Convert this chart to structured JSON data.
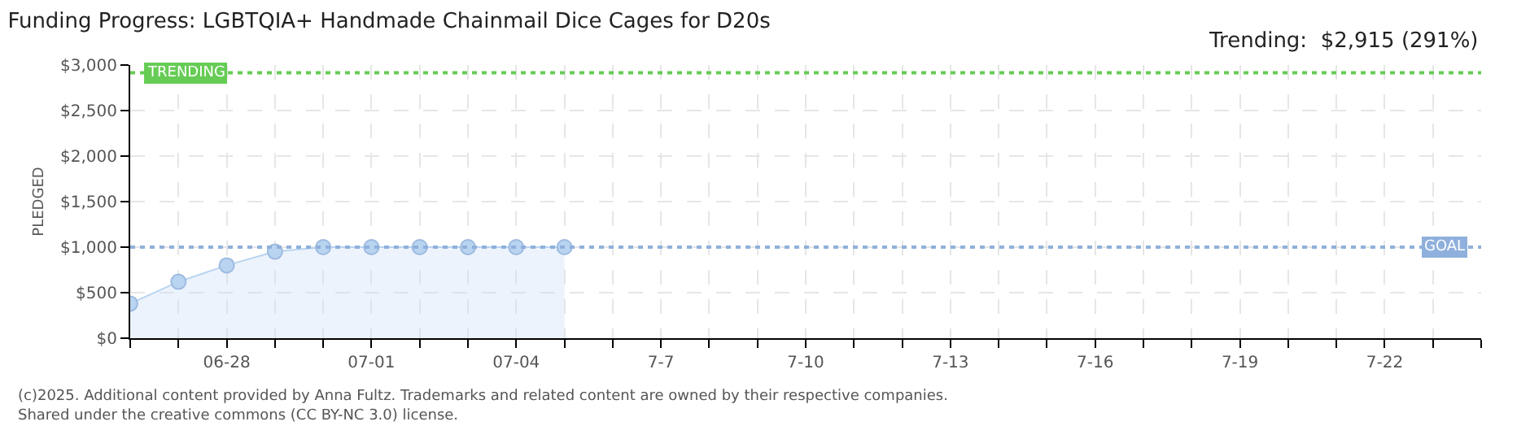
{
  "chart_data": {
    "type": "area",
    "title": "Funding Progress: LGBTQIA+ Handmade Chainmail Dice Cages for D20s",
    "ylabel": "PLEDGED",
    "annotations": [
      "Trending:  $2,915 (291%)",
      "(c)2025. Additional content provided by Anna Fultz. Trademarks and related content are owned by their respective companies.",
      "Shared under the creative commons (CC BY-NC 3.0) license."
    ],
    "x": [
      "--06-26",
      "--06-27",
      "--06-28",
      "--06-29",
      "--06-30",
      "--07-01",
      "--07-02",
      "--07-03",
      "--07-04",
      "--07-05"
    ],
    "series": [
      {
        "color": "#b8d4f0",
        "values": [
          380,
          620,
          800,
          950,
          1000,
          1000,
          1000,
          1000,
          1000,
          1000
        ]
      }
    ],
    "marker": "circle",
    "line_style": "solid",
    "grid": true,
    "legend": false,
    "xlim": [
      "--06-26",
      "--07-24"
    ],
    "xticks": [
      {
        "value": "--06-26",
        "label": null
      },
      {
        "value": "--06-27",
        "label": null
      },
      {
        "value": "--06-28",
        "label": "06-28"
      },
      {
        "value": "--06-29",
        "label": null
      },
      {
        "value": "--06-30",
        "label": null
      },
      {
        "value": "--07-01",
        "label": "07-01"
      },
      {
        "value": "--07-02",
        "label": null
      },
      {
        "value": "--07-03",
        "label": null
      },
      {
        "value": "--07-04",
        "label": "07-04"
      },
      {
        "value": "--07-05",
        "label": null
      },
      {
        "value": "--07-06",
        "label": null
      },
      {
        "value": "--07-07",
        "label": "7-7"
      },
      {
        "value": "--07-08",
        "label": null
      },
      {
        "value": "--07-09",
        "label": null
      },
      {
        "value": "--07-10",
        "label": "7-10"
      },
      {
        "value": "--07-11",
        "label": null
      },
      {
        "value": "--07-12",
        "label": null
      },
      {
        "value": "--07-13",
        "label": "7-13"
      },
      {
        "value": "--07-14",
        "label": null
      },
      {
        "value": "--07-15",
        "label": null
      },
      {
        "value": "--07-16",
        "label": "7-16"
      },
      {
        "value": "--07-17",
        "label": null
      },
      {
        "value": "--07-18",
        "label": null
      },
      {
        "value": "--07-19",
        "label": "7-19"
      },
      {
        "value": "--07-20",
        "label": null
      },
      {
        "value": "--07-21",
        "label": null
      },
      {
        "value": "--07-22",
        "label": "7-22"
      },
      {
        "value": "--07-23",
        "label": null
      },
      {
        "value": "--07-24",
        "label": null
      }
    ],
    "ylim": [
      0,
      3000
    ],
    "yticks": [
      {
        "value": 0,
        "label": "$0"
      },
      {
        "value": 500,
        "label": "$500"
      },
      {
        "value": 1000,
        "label": "$1,000"
      },
      {
        "value": 1500,
        "label": "$1,500"
      },
      {
        "value": 2000,
        "label": "$2,000"
      },
      {
        "value": 2500,
        "label": "$2,500"
      },
      {
        "value": 3000,
        "label": "$3,000"
      }
    ],
    "ref_lines": [
      {
        "axis": "y",
        "value": 2915,
        "label": "TRENDING",
        "color": "#66cc55",
        "line_style": "dotted"
      },
      {
        "axis": "y",
        "value": 1000,
        "label": "GOAL",
        "color": "#8fb0dc",
        "line_style": "dotted"
      }
    ]
  }
}
